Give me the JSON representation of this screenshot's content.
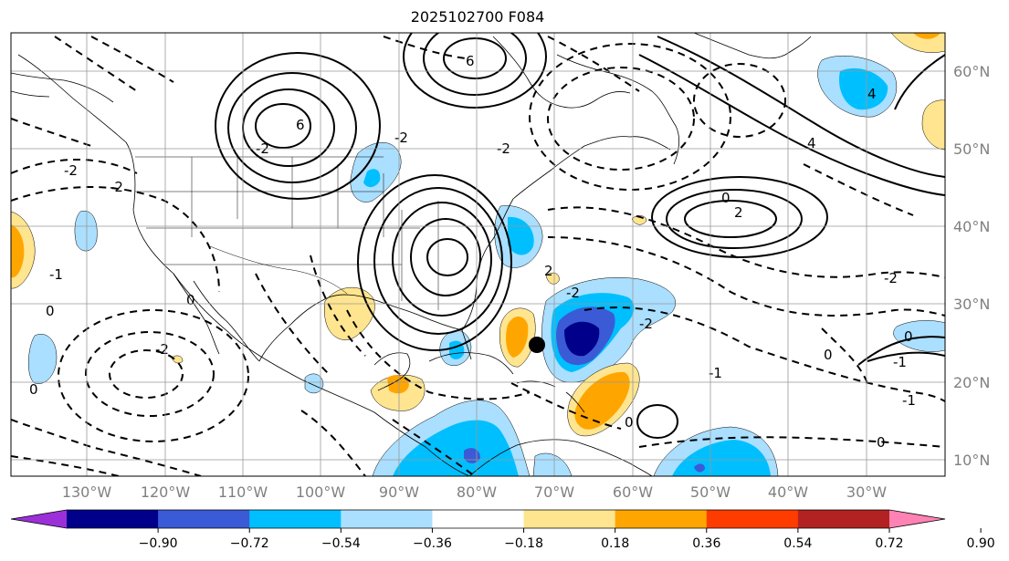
{
  "title": "2025102700 F084",
  "lat_labels": [
    "60°N",
    "50°N",
    "40°N",
    "30°N",
    "20°N",
    "10°N"
  ],
  "lon_labels": [
    "130°W",
    "120°W",
    "110°W",
    "100°W",
    "90°W",
    "80°W",
    "70°W",
    "60°W",
    "50°W",
    "40°W",
    "30°W"
  ],
  "colorbar": {
    "tick_labels": [
      "−0.90",
      "−0.72",
      "−0.54",
      "−0.36",
      "−0.18",
      "0.18",
      "0.36",
      "0.54",
      "0.72",
      "0.90"
    ],
    "colors": [
      "#9b30d9",
      "#00008b",
      "#3b5bd6",
      "#00bfff",
      "#aadfff",
      "#ffffff",
      "#ffe58f",
      "#ffa500",
      "#ff3c00",
      "#b22222",
      "#ff82b4"
    ]
  },
  "contour_labels": [
    "6",
    "6",
    "4",
    "0",
    "-2",
    "-2",
    "-2",
    "0",
    "-2",
    "-2",
    "-2",
    "0",
    "2",
    "4",
    "2",
    "0",
    "-1",
    "-2",
    "-2",
    "0",
    "-1",
    "0",
    "0",
    "-1",
    "-1",
    "0",
    "-2"
  ],
  "marker": {
    "lon": -71,
    "lat": 25
  }
}
